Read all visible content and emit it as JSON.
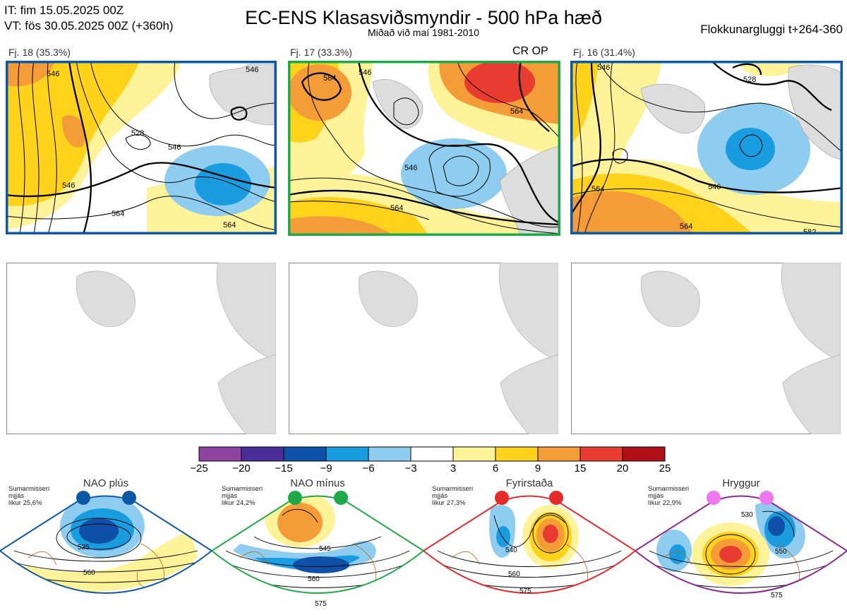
{
  "header": {
    "it_line": "IT: fim 15.05.2025 00Z",
    "vt_line": "VT: fös 30.05.2025 00Z  (+360h)",
    "title": "EC-ENS Klasasviðsmyndir - 500 hPa hæð",
    "subtitle": "Miðað við maí 1981-2010",
    "window": "Flokkunargluggi t+264-360"
  },
  "clusters": [
    {
      "label": "Fj. 18 (35.3%)",
      "border_color": "#0d58a5",
      "contour_labels": [
        "546",
        "528",
        "546",
        "546",
        "564",
        "564",
        "546"
      ]
    },
    {
      "label": "Fj. 17 (33.3%)",
      "border_color": "#1faa4a",
      "tag": "CR OP",
      "contour_labels": [
        "564",
        "546",
        "546",
        "564",
        "564"
      ]
    },
    {
      "label": "Fj. 16 (31.4%)",
      "border_color": "#0d58a5",
      "contour_labels": [
        "546",
        "564",
        "546",
        "564",
        "582",
        "528"
      ]
    }
  ],
  "colorbar": {
    "ticks": [
      "−25",
      "−20",
      "−15",
      "−9",
      "−6",
      "−3",
      "3",
      "6",
      "9",
      "15",
      "20",
      "25"
    ],
    "colors": [
      "#8e44a0",
      "#4a2f99",
      "#0f50a8",
      "#1a9ce0",
      "#8ecdf0",
      "#ffffff",
      "#fff39a",
      "#ffd21c",
      "#f39c38",
      "#e83c30",
      "#b10f17"
    ]
  },
  "regimes": [
    {
      "name": "NAO plús",
      "stat_lines": [
        "Sumarmisseri",
        "mjjás",
        "líkur 25,6%"
      ],
      "color": "#0d58a5",
      "contour_labels": [
        "535",
        "560"
      ]
    },
    {
      "name": "NAO mínus",
      "stat_lines": [
        "Sumarmisseri",
        "mjjás",
        "líkur 24,2%"
      ],
      "color": "#1faa4a",
      "contour_labels": [
        "545",
        "560",
        "575"
      ]
    },
    {
      "name": "Fyrirstaða",
      "stat_lines": [
        "Sumarmisseri",
        "mjjás",
        "líkur 27,3%"
      ],
      "color": "#e52b2b",
      "contour_labels": [
        "540",
        "560",
        "575"
      ]
    },
    {
      "name": "Hryggur",
      "stat_lines": [
        "Sumarmisseri",
        "mjjás",
        "líkur 22,9%"
      ],
      "color": "#8e2a8e",
      "contour_labels": [
        "530",
        "550",
        "575"
      ]
    }
  ]
}
